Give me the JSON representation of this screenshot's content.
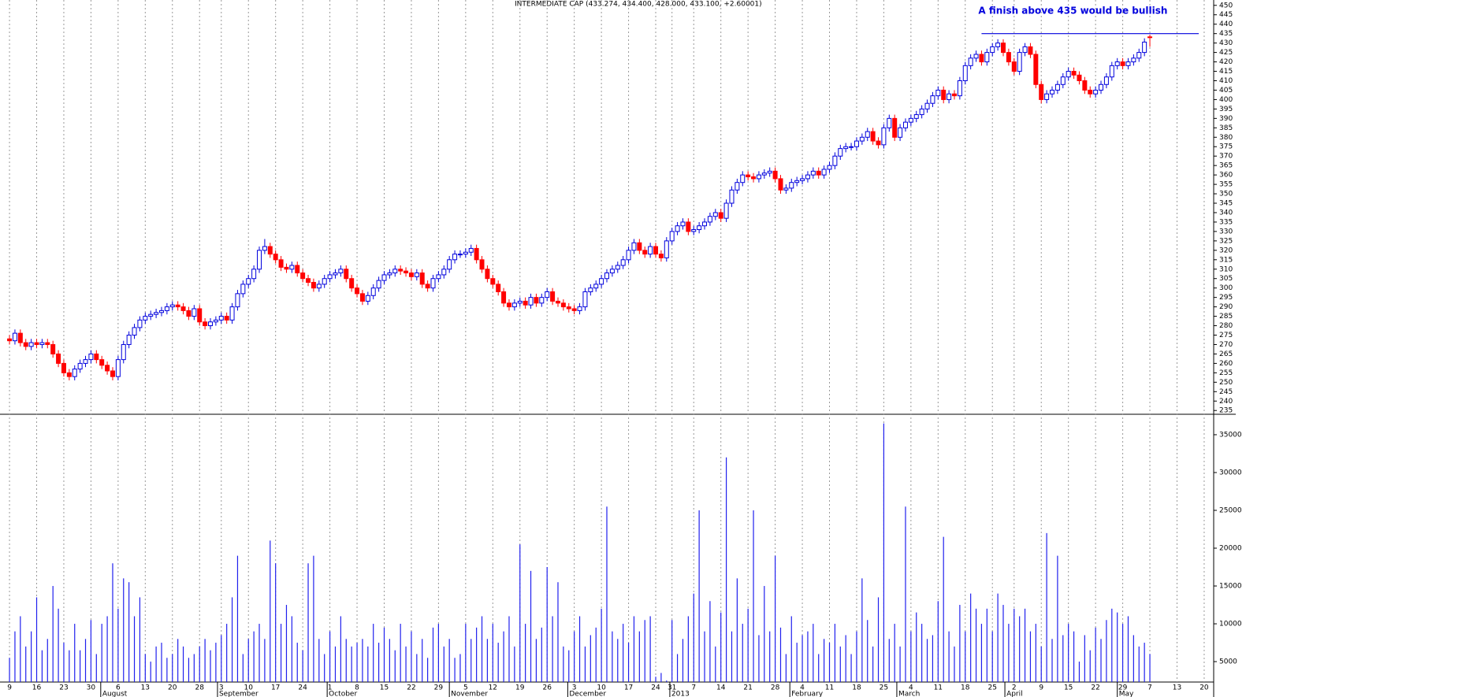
{
  "chart_data": [
    {
      "type": "candlestick",
      "title": "INTERMEDIATE CAP (433.274, 434.400, 428.000, 433.100, +2.60001)",
      "annotation": "A finish above 435 would be bullish",
      "resistance": {
        "value": 435,
        "x": [
          179,
          219
        ]
      },
      "up_color": "#0000dd",
      "down_color": "#ff0000",
      "annotation_color": "#0000dd",
      "xlim": [
        -1.75,
        221.75
      ],
      "xticks": [
        {
          "value": 0,
          "label": "9"
        },
        {
          "value": 5,
          "label": "16"
        },
        {
          "value": 10,
          "label": "23"
        },
        {
          "value": 15,
          "label": "30"
        },
        {
          "value": 20,
          "label": "6"
        },
        {
          "value": 25,
          "label": "13"
        },
        {
          "value": 30,
          "label": "20"
        },
        {
          "value": 35,
          "label": "28"
        },
        {
          "value": 39,
          "label": "3"
        },
        {
          "value": 44,
          "label": "10"
        },
        {
          "value": 49,
          "label": "17"
        },
        {
          "value": 54,
          "label": "24"
        },
        {
          "value": 59,
          "label": "1"
        },
        {
          "value": 64,
          "label": "8"
        },
        {
          "value": 69,
          "label": "15"
        },
        {
          "value": 74,
          "label": "22"
        },
        {
          "value": 79,
          "label": "29"
        },
        {
          "value": 84,
          "label": "5"
        },
        {
          "value": 89,
          "label": "12"
        },
        {
          "value": 94,
          "label": "19"
        },
        {
          "value": 99,
          "label": "26"
        },
        {
          "value": 104,
          "label": "3"
        },
        {
          "value": 109,
          "label": "10"
        },
        {
          "value": 114,
          "label": "17"
        },
        {
          "value": 119,
          "label": "24"
        },
        {
          "value": 122,
          "label": "31"
        },
        {
          "value": 126,
          "label": "7"
        },
        {
          "value": 131,
          "label": "14"
        },
        {
          "value": 136,
          "label": "21"
        },
        {
          "value": 141,
          "label": "28"
        },
        {
          "value": 146,
          "label": "4"
        },
        {
          "value": 151,
          "label": "11"
        },
        {
          "value": 156,
          "label": "18"
        },
        {
          "value": 161,
          "label": "25"
        },
        {
          "value": 166,
          "label": "4"
        },
        {
          "value": 171,
          "label": "11"
        },
        {
          "value": 176,
          "label": "18"
        },
        {
          "value": 181,
          "label": "25"
        },
        {
          "value": 185,
          "label": "2"
        },
        {
          "value": 190,
          "label": "9"
        },
        {
          "value": 195,
          "label": "15"
        },
        {
          "value": 200,
          "label": "22"
        },
        {
          "value": 205,
          "label": "29"
        },
        {
          "value": 210,
          "label": "7"
        },
        {
          "value": 215,
          "label": "13"
        },
        {
          "value": 220,
          "label": "20"
        }
      ],
      "month_ticks": [
        {
          "value": 16.8,
          "label": "August"
        },
        {
          "value": 38.3,
          "label": "September"
        },
        {
          "value": 58.5,
          "label": "October"
        },
        {
          "value": 81,
          "label": "November"
        },
        {
          "value": 102.8,
          "label": "December"
        },
        {
          "value": 121.6,
          "label": "2013"
        },
        {
          "value": 143.7,
          "label": "February"
        },
        {
          "value": 163.4,
          "label": "March"
        },
        {
          "value": 183.3,
          "label": "April"
        },
        {
          "value": 204,
          "label": "May"
        }
      ],
      "ylim": [
        233,
        452
      ],
      "yticks": [
        235,
        240,
        245,
        250,
        255,
        260,
        265,
        270,
        275,
        280,
        285,
        290,
        295,
        300,
        305,
        310,
        315,
        320,
        325,
        330,
        335,
        340,
        345,
        350,
        355,
        360,
        365,
        370,
        375,
        380,
        385,
        390,
        395,
        400,
        405,
        410,
        415,
        420,
        425,
        430,
        435,
        440,
        445,
        450
      ],
      "open": [
        273,
        272,
        276,
        271,
        269,
        271,
        270,
        271,
        270,
        265,
        260,
        255,
        253,
        257,
        260,
        262,
        265,
        262,
        259,
        256,
        253,
        262,
        270,
        275,
        279,
        283,
        285,
        286,
        287,
        288,
        290,
        291,
        290,
        288,
        285,
        289,
        282,
        280,
        282,
        283,
        285,
        283,
        290,
        297,
        302,
        305,
        310,
        320,
        322,
        318,
        315,
        311,
        310,
        312,
        308,
        305,
        303,
        300,
        302,
        305,
        307,
        308,
        310,
        305,
        300,
        297,
        293,
        296,
        300,
        304,
        307,
        308,
        310,
        309,
        308,
        306,
        308,
        302,
        300,
        305,
        307,
        310,
        315,
        318,
        318,
        319,
        321,
        315,
        310,
        305,
        302,
        298,
        292,
        290,
        292,
        293,
        291,
        295,
        292,
        295,
        298,
        293,
        292,
        290,
        289,
        288,
        290,
        298,
        300,
        302,
        305,
        308,
        310,
        312,
        315,
        320,
        324,
        320,
        318,
        322,
        318,
        316,
        325,
        330,
        333,
        335,
        330,
        331,
        333,
        335,
        338,
        340,
        337,
        345,
        352,
        356,
        360,
        359,
        358,
        360,
        361,
        362,
        358,
        352,
        353,
        356,
        357,
        358,
        360,
        362,
        360,
        363,
        365,
        370,
        374,
        375,
        375,
        378,
        380,
        383,
        378,
        376,
        385,
        390,
        380,
        385,
        388,
        390,
        392,
        395,
        398,
        402,
        405,
        400,
        403,
        402,
        410,
        418,
        422,
        424,
        420,
        425,
        428,
        430,
        425,
        420,
        415,
        425,
        428,
        424,
        408,
        400,
        403,
        405,
        408,
        412,
        415,
        413,
        410,
        405,
        403,
        405,
        408,
        412,
        418,
        420,
        418,
        420,
        422,
        425,
        433.274
      ],
      "high": [
        275,
        278,
        278,
        273,
        273,
        273,
        273,
        273,
        272,
        267,
        262,
        257,
        259,
        262,
        264,
        267,
        267,
        264,
        261,
        258,
        264,
        272,
        277,
        281,
        285,
        287,
        288,
        289,
        290,
        292,
        293,
        293,
        292,
        290,
        291,
        291,
        284,
        284,
        285,
        287,
        287,
        292,
        299,
        304,
        307,
        312,
        322,
        326,
        324,
        320,
        317,
        313,
        314,
        314,
        310,
        307,
        305,
        304,
        307,
        309,
        310,
        312,
        312,
        307,
        302,
        299,
        298,
        302,
        306,
        309,
        310,
        312,
        312,
        311,
        310,
        310,
        310,
        304,
        307,
        309,
        312,
        317,
        320,
        320,
        321,
        323,
        323,
        317,
        312,
        307,
        304,
        300,
        294,
        294,
        295,
        295,
        297,
        297,
        297,
        300,
        300,
        295,
        294,
        292,
        291,
        292,
        300,
        302,
        304,
        307,
        310,
        312,
        314,
        317,
        322,
        326,
        326,
        322,
        324,
        324,
        320,
        327,
        332,
        335,
        337,
        337,
        333,
        335,
        337,
        340,
        342,
        342,
        347,
        354,
        358,
        362,
        362,
        361,
        362,
        363,
        364,
        364,
        360,
        355,
        358,
        359,
        360,
        362,
        364,
        364,
        365,
        367,
        372,
        376,
        377,
        377,
        380,
        382,
        385,
        385,
        380,
        387,
        392,
        392,
        387,
        390,
        392,
        394,
        397,
        400,
        404,
        407,
        407,
        405,
        405,
        412,
        420,
        424,
        426,
        426,
        427,
        430,
        432,
        432,
        427,
        422,
        427,
        430,
        430,
        426,
        410,
        405,
        407,
        410,
        414,
        417,
        417,
        415,
        412,
        407,
        407,
        410,
        414,
        420,
        422,
        422,
        422,
        424,
        427,
        432.5,
        434.4
      ],
      "low": [
        270,
        270,
        269,
        267,
        267,
        268,
        268,
        268,
        263,
        258,
        253,
        251,
        251,
        255,
        258,
        260,
        260,
        257,
        254,
        251,
        251,
        260,
        268,
        273,
        277,
        281,
        283,
        284,
        285,
        286,
        288,
        288,
        286,
        283,
        283,
        280,
        278,
        278,
        280,
        281,
        281,
        281,
        288,
        295,
        300,
        303,
        308,
        318,
        316,
        313,
        309,
        308,
        308,
        306,
        303,
        301,
        298,
        298,
        300,
        303,
        305,
        306,
        303,
        298,
        295,
        291,
        291,
        294,
        298,
        302,
        305,
        306,
        307,
        306,
        304,
        304,
        300,
        298,
        298,
        303,
        305,
        308,
        313,
        316,
        316,
        317,
        313,
        308,
        303,
        300,
        296,
        290,
        288,
        288,
        290,
        289,
        289,
        290,
        290,
        293,
        291,
        290,
        288,
        287,
        286,
        286,
        288,
        296,
        298,
        300,
        303,
        306,
        308,
        310,
        313,
        318,
        318,
        316,
        316,
        316,
        314,
        314,
        323,
        328,
        331,
        328,
        328,
        329,
        331,
        333,
        336,
        335,
        335,
        343,
        350,
        354,
        357,
        356,
        356,
        358,
        359,
        356,
        350,
        350,
        351,
        354,
        355,
        356,
        358,
        358,
        358,
        361,
        363,
        368,
        372,
        373,
        373,
        376,
        378,
        376,
        374,
        374,
        383,
        378,
        378,
        383,
        386,
        388,
        390,
        393,
        396,
        400,
        398,
        398,
        400,
        400,
        408,
        416,
        420,
        418,
        418,
        423,
        426,
        423,
        418,
        413,
        413,
        423,
        422,
        406,
        398,
        398,
        401,
        403,
        406,
        410,
        411,
        408,
        403,
        401,
        401,
        403,
        406,
        410,
        416,
        416,
        416,
        418,
        420,
        423,
        428
      ],
      "close": [
        272,
        276,
        271,
        269,
        271,
        270,
        271,
        270,
        265,
        260,
        255,
        253,
        257,
        260,
        262,
        265,
        262,
        259,
        256,
        253,
        262,
        270,
        275,
        279,
        283,
        285,
        286,
        287,
        288,
        290,
        291,
        290,
        288,
        285,
        289,
        282,
        280,
        282,
        283,
        285,
        283,
        290,
        297,
        302,
        305,
        310,
        320,
        322,
        318,
        315,
        311,
        310,
        312,
        308,
        305,
        303,
        300,
        302,
        305,
        307,
        308,
        310,
        305,
        300,
        297,
        293,
        296,
        300,
        304,
        307,
        308,
        310,
        309,
        308,
        306,
        308,
        302,
        300,
        305,
        307,
        310,
        315,
        318,
        318,
        319,
        321,
        315,
        310,
        305,
        302,
        298,
        292,
        290,
        292,
        293,
        291,
        295,
        292,
        295,
        298,
        293,
        292,
        290,
        289,
        288,
        290,
        298,
        300,
        302,
        305,
        308,
        310,
        312,
        315,
        320,
        324,
        320,
        318,
        322,
        318,
        316,
        325,
        330,
        333,
        335,
        330,
        331,
        333,
        335,
        338,
        340,
        337,
        345,
        352,
        356,
        360,
        359,
        358,
        360,
        361,
        362,
        358,
        352,
        353,
        356,
        357,
        358,
        360,
        362,
        360,
        363,
        365,
        370,
        374,
        375,
        375,
        378,
        380,
        383,
        378,
        376,
        385,
        390,
        380,
        385,
        388,
        390,
        392,
        395,
        398,
        402,
        405,
        400,
        403,
        402,
        410,
        418,
        422,
        424,
        420,
        425,
        428,
        430,
        425,
        420,
        415,
        425,
        428,
        424,
        408,
        400,
        403,
        405,
        408,
        412,
        415,
        413,
        410,
        405,
        403,
        405,
        408,
        412,
        418,
        420,
        418,
        420,
        422,
        425,
        430.5,
        433.1
      ]
    },
    {
      "type": "bar",
      "color": "#2020ee",
      "ylim": [
        2300,
        37600
      ],
      "yticks": [
        5000,
        10000,
        15000,
        20000,
        25000,
        30000,
        35000
      ],
      "values": [
        5500,
        9000,
        11000,
        7000,
        9000,
        13500,
        6500,
        8000,
        15000,
        12000,
        7500,
        6500,
        10000,
        6500,
        8000,
        10500,
        6000,
        10000,
        11000,
        18000,
        12000,
        16000,
        15500,
        11000,
        13500,
        6000,
        5000,
        7000,
        7500,
        5500,
        6000,
        8000,
        7000,
        5500,
        6000,
        7000,
        8000,
        6500,
        7500,
        8500,
        10000,
        13500,
        19000,
        6000,
        8000,
        9000,
        10000,
        8000,
        21000,
        18000,
        10000,
        12500,
        11000,
        7500,
        6500,
        18000,
        19000,
        8000,
        6000,
        9000,
        7000,
        11000,
        8000,
        7000,
        7500,
        8000,
        7000,
        10000,
        7500,
        9500,
        8000,
        6500,
        10000,
        7000,
        9000,
        6000,
        8000,
        5500,
        9500,
        10000,
        7000,
        8000,
        5500,
        6000,
        10000,
        8000,
        9500,
        11000,
        8000,
        10000,
        7500,
        9000,
        11000,
        7000,
        20500,
        10000,
        17000,
        8000,
        9500,
        17500,
        11000,
        15500,
        7000,
        6500,
        9000,
        11000,
        7000,
        8500,
        9500,
        12000,
        25500,
        9000,
        8000,
        10000,
        7500,
        11000,
        9000,
        10500,
        11000,
        3000,
        3500,
        2500,
        10500,
        6000,
        8000,
        11000,
        14000,
        25000,
        9000,
        13000,
        7000,
        11500,
        32000,
        9000,
        16000,
        10000,
        12000,
        25000,
        8500,
        15000,
        9000,
        19000,
        9500,
        6000,
        11000,
        7500,
        8500,
        9000,
        10000,
        6000,
        8000,
        7500,
        10000,
        7000,
        8500,
        6000,
        9000,
        16000,
        10500,
        7000,
        13500,
        36500,
        8000,
        10000,
        7000,
        25500,
        9000,
        11500,
        10000,
        8000,
        8500,
        13000,
        21500,
        9000,
        7000,
        12500,
        9000,
        14000,
        12000,
        10000,
        12000,
        9000,
        14000,
        12500,
        10000,
        12000,
        11000,
        12000,
        9000,
        10000,
        7000,
        22000,
        8000,
        19000,
        8500,
        10000,
        9000,
        5000,
        8500,
        6500,
        9500,
        8000,
        10500,
        12000,
        11500,
        10000,
        11000,
        8500,
        7000,
        7500,
        6000
      ]
    }
  ]
}
